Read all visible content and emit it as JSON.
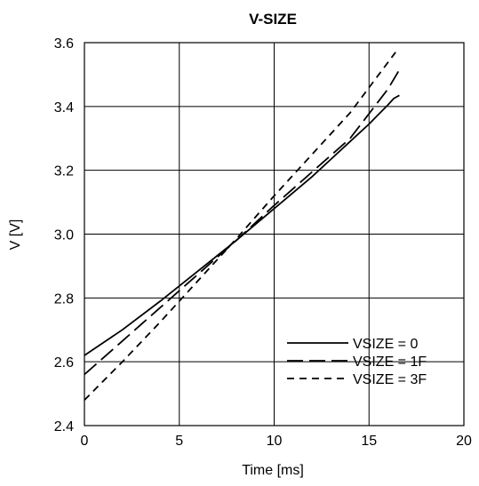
{
  "chart_data": {
    "type": "line",
    "title": "V-SIZE",
    "xlabel": "Time [ms]",
    "ylabel": "V [V]",
    "xlim": [
      0,
      20
    ],
    "ylim": [
      2.4,
      3.6
    ],
    "xticks": [
      "0",
      "5",
      "10",
      "15",
      "20"
    ],
    "yticks": [
      "2.4",
      "2.6",
      "2.8",
      "3.0",
      "3.2",
      "3.4",
      "3.6"
    ],
    "grid": true,
    "legend_position": "bottom-right",
    "series": [
      {
        "name": "VSIZE = 0",
        "style": "solid",
        "x": [
          0,
          2,
          4,
          6,
          8,
          10,
          12,
          14,
          15,
          15.5,
          16,
          16.3,
          16.6
        ],
        "y": [
          2.62,
          2.7,
          2.79,
          2.885,
          2.98,
          3.08,
          3.18,
          3.29,
          3.345,
          3.375,
          3.405,
          3.425,
          3.435
        ]
      },
      {
        "name": "VSIZE = 1F",
        "style": "dash",
        "x": [
          0,
          2,
          4,
          6,
          8,
          10,
          12,
          14,
          16,
          16.6
        ],
        "y": [
          2.56,
          2.665,
          2.77,
          2.875,
          2.98,
          3.09,
          3.195,
          3.3,
          3.455,
          3.515
        ]
      },
      {
        "name": "VSIZE = 3F",
        "style": "short-dash",
        "x": [
          0,
          2,
          4,
          6,
          8,
          10,
          12,
          14,
          16.4
        ],
        "y": [
          2.48,
          2.6,
          2.725,
          2.855,
          2.985,
          3.12,
          3.25,
          3.38,
          3.57
        ]
      }
    ]
  }
}
